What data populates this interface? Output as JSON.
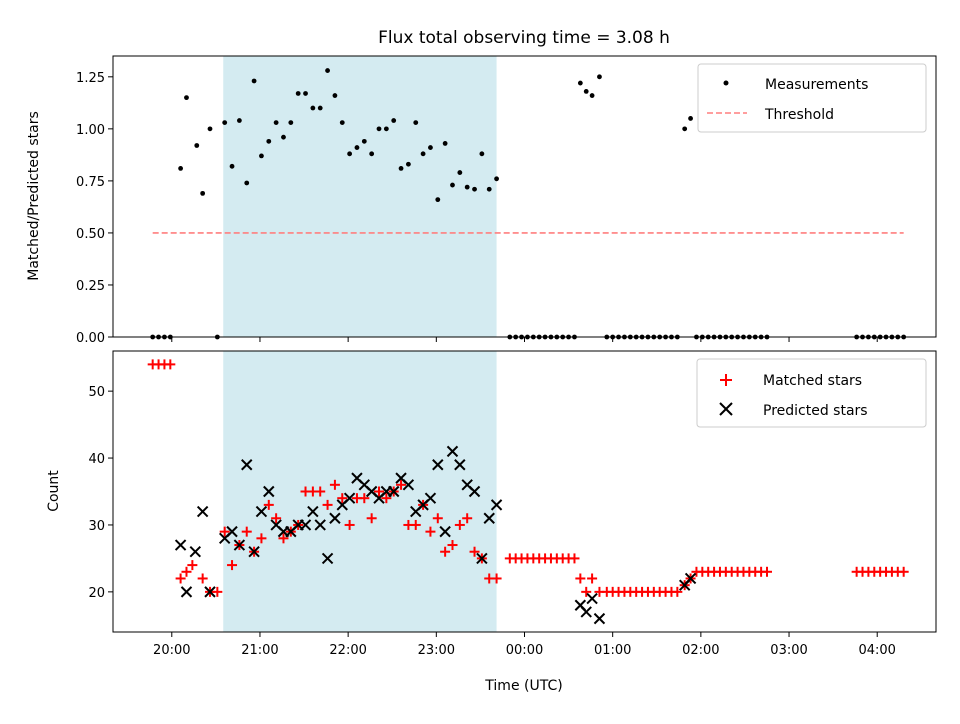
{
  "chart_data": [
    {
      "type": "scatter",
      "title": "Flux total observing time = 3.08 h",
      "xlabel": "",
      "ylabel": "Matched/Predicted stars",
      "ylim": [
        0,
        1.35
      ],
      "xlim": [
        "19:20",
        "04:40"
      ],
      "yticks": [
        "0.00",
        "0.25",
        "0.50",
        "0.75",
        "1.00",
        "1.25"
      ],
      "legend_position": "top-right",
      "shaded_interval": {
        "start": "20:35",
        "end": "23:41",
        "color": "#d4ebf1"
      },
      "series": [
        {
          "name": "Measurements",
          "marker": "dot",
          "color": "#000000",
          "points": [
            [
              "19:47",
              0
            ],
            [
              "19:51",
              0
            ],
            [
              "19:55",
              0
            ],
            [
              "19:59",
              0
            ],
            [
              "20:06",
              0.81
            ],
            [
              "20:10",
              1.15
            ],
            [
              "20:17",
              0.92
            ],
            [
              "20:21",
              0.69
            ],
            [
              "20:26",
              1.0
            ],
            [
              "20:31",
              0
            ],
            [
              "20:36",
              1.03
            ],
            [
              "20:41",
              0.82
            ],
            [
              "20:46",
              1.04
            ],
            [
              "20:51",
              0.74
            ],
            [
              "20:56",
              1.23
            ],
            [
              "21:01",
              0.87
            ],
            [
              "21:06",
              0.94
            ],
            [
              "21:11",
              1.03
            ],
            [
              "21:16",
              0.96
            ],
            [
              "21:21",
              1.03
            ],
            [
              "21:26",
              1.17
            ],
            [
              "21:31",
              1.17
            ],
            [
              "21:36",
              1.1
            ],
            [
              "21:41",
              1.1
            ],
            [
              "21:46",
              1.28
            ],
            [
              "21:51",
              1.16
            ],
            [
              "21:56",
              1.03
            ],
            [
              "22:01",
              0.88
            ],
            [
              "22:06",
              0.91
            ],
            [
              "22:11",
              0.94
            ],
            [
              "22:16",
              0.88
            ],
            [
              "22:21",
              1.0
            ],
            [
              "22:26",
              1.0
            ],
            [
              "22:31",
              1.04
            ],
            [
              "22:36",
              0.81
            ],
            [
              "22:41",
              0.83
            ],
            [
              "22:46",
              1.03
            ],
            [
              "22:51",
              0.88
            ],
            [
              "22:56",
              0.91
            ],
            [
              "23:01",
              0.66
            ],
            [
              "23:06",
              0.93
            ],
            [
              "23:11",
              0.73
            ],
            [
              "23:16",
              0.79
            ],
            [
              "23:21",
              0.72
            ],
            [
              "23:26",
              0.71
            ],
            [
              "23:31",
              0.88
            ],
            [
              "23:36",
              0.71
            ],
            [
              "23:41",
              0.76
            ],
            [
              "23:50",
              0
            ],
            [
              "23:54",
              0
            ],
            [
              "23:58",
              0
            ],
            [
              "00:02",
              0
            ],
            [
              "00:06",
              0
            ],
            [
              "00:10",
              0
            ],
            [
              "00:14",
              0
            ],
            [
              "00:18",
              0
            ],
            [
              "00:22",
              0
            ],
            [
              "00:26",
              0
            ],
            [
              "00:30",
              0
            ],
            [
              "00:34",
              0
            ],
            [
              "00:38",
              1.22
            ],
            [
              "00:42",
              1.18
            ],
            [
              "00:46",
              1.16
            ],
            [
              "00:51",
              1.25
            ],
            [
              "00:56",
              0
            ],
            [
              "01:00",
              0
            ],
            [
              "01:04",
              0
            ],
            [
              "01:08",
              0
            ],
            [
              "01:12",
              0
            ],
            [
              "01:16",
              0
            ],
            [
              "01:20",
              0
            ],
            [
              "01:24",
              0
            ],
            [
              "01:28",
              0
            ],
            [
              "01:32",
              0
            ],
            [
              "01:36",
              0
            ],
            [
              "01:40",
              0
            ],
            [
              "01:44",
              0
            ],
            [
              "01:49",
              1.0
            ],
            [
              "01:53",
              1.05
            ],
            [
              "01:57",
              0
            ],
            [
              "02:01",
              0
            ],
            [
              "02:05",
              0
            ],
            [
              "02:09",
              0
            ],
            [
              "02:13",
              0
            ],
            [
              "02:17",
              0
            ],
            [
              "02:21",
              0
            ],
            [
              "02:25",
              0
            ],
            [
              "02:29",
              0
            ],
            [
              "02:33",
              0
            ],
            [
              "02:37",
              0
            ],
            [
              "02:41",
              0
            ],
            [
              "02:45",
              0
            ],
            [
              "03:46",
              0
            ],
            [
              "03:50",
              0
            ],
            [
              "03:54",
              0
            ],
            [
              "03:58",
              0
            ],
            [
              "04:02",
              0
            ],
            [
              "04:06",
              0
            ],
            [
              "04:10",
              0
            ],
            [
              "04:14",
              0
            ],
            [
              "04:18",
              0
            ]
          ]
        },
        {
          "name": "Threshold",
          "style": "dashed",
          "color": "#ff7f7f",
          "points": [
            [
              "19:47",
              0.5
            ],
            [
              "04:18",
              0.5
            ]
          ]
        }
      ]
    },
    {
      "type": "scatter",
      "title": "",
      "xlabel": "Time (UTC)",
      "ylabel": "Count",
      "ylim": [
        14,
        56
      ],
      "xlim": [
        "19:20",
        "04:40"
      ],
      "yticks": [
        "20",
        "30",
        "40",
        "50"
      ],
      "xticks": [
        "20:00",
        "21:00",
        "22:00",
        "23:00",
        "00:00",
        "01:00",
        "02:00",
        "03:00",
        "04:00"
      ],
      "legend_position": "top-right",
      "shaded_interval": {
        "start": "20:35",
        "end": "23:41",
        "color": "#d4ebf1"
      },
      "series": [
        {
          "name": "Matched stars",
          "marker": "plus",
          "color": "#ff0000",
          "points": [
            [
              "19:47",
              54
            ],
            [
              "19:51",
              54
            ],
            [
              "19:55",
              54
            ],
            [
              "19:59",
              54
            ],
            [
              "20:06",
              22
            ],
            [
              "20:10",
              23
            ],
            [
              "20:14",
              24
            ],
            [
              "20:21",
              22
            ],
            [
              "20:26",
              20
            ],
            [
              "20:31",
              20
            ],
            [
              "20:36",
              29
            ],
            [
              "20:41",
              24
            ],
            [
              "20:46",
              27
            ],
            [
              "20:51",
              29
            ],
            [
              "20:56",
              26
            ],
            [
              "21:01",
              28
            ],
            [
              "21:06",
              33
            ],
            [
              "21:11",
              31
            ],
            [
              "21:16",
              28
            ],
            [
              "21:21",
              29
            ],
            [
              "21:26",
              30
            ],
            [
              "21:31",
              35
            ],
            [
              "21:36",
              35
            ],
            [
              "21:41",
              35
            ],
            [
              "21:46",
              33
            ],
            [
              "21:51",
              36
            ],
            [
              "21:56",
              34
            ],
            [
              "22:01",
              30
            ],
            [
              "22:06",
              34
            ],
            [
              "22:11",
              34
            ],
            [
              "22:16",
              31
            ],
            [
              "22:21",
              35
            ],
            [
              "22:26",
              34
            ],
            [
              "22:31",
              35
            ],
            [
              "22:36",
              36
            ],
            [
              "22:41",
              30
            ],
            [
              "22:46",
              30
            ],
            [
              "22:51",
              33
            ],
            [
              "22:56",
              29
            ],
            [
              "23:01",
              31
            ],
            [
              "23:06",
              26
            ],
            [
              "23:11",
              27
            ],
            [
              "23:16",
              30
            ],
            [
              "23:21",
              31
            ],
            [
              "23:26",
              26
            ],
            [
              "23:31",
              25
            ],
            [
              "23:36",
              22
            ],
            [
              "23:41",
              22
            ],
            [
              "23:50",
              25
            ],
            [
              "23:54",
              25
            ],
            [
              "23:58",
              25
            ],
            [
              "00:02",
              25
            ],
            [
              "00:06",
              25
            ],
            [
              "00:10",
              25
            ],
            [
              "00:14",
              25
            ],
            [
              "00:18",
              25
            ],
            [
              "00:22",
              25
            ],
            [
              "00:26",
              25
            ],
            [
              "00:30",
              25
            ],
            [
              "00:34",
              25
            ],
            [
              "00:38",
              22
            ],
            [
              "00:42",
              20
            ],
            [
              "00:46",
              22
            ],
            [
              "00:51",
              20
            ],
            [
              "00:56",
              20
            ],
            [
              "01:00",
              20
            ],
            [
              "01:04",
              20
            ],
            [
              "01:08",
              20
            ],
            [
              "01:12",
              20
            ],
            [
              "01:16",
              20
            ],
            [
              "01:20",
              20
            ],
            [
              "01:24",
              20
            ],
            [
              "01:28",
              20
            ],
            [
              "01:32",
              20
            ],
            [
              "01:36",
              20
            ],
            [
              "01:40",
              20
            ],
            [
              "01:44",
              20
            ],
            [
              "01:49",
              21
            ],
            [
              "01:53",
              22
            ],
            [
              "01:57",
              23
            ],
            [
              "02:01",
              23
            ],
            [
              "02:05",
              23
            ],
            [
              "02:09",
              23
            ],
            [
              "02:13",
              23
            ],
            [
              "02:17",
              23
            ],
            [
              "02:21",
              23
            ],
            [
              "02:25",
              23
            ],
            [
              "02:29",
              23
            ],
            [
              "02:33",
              23
            ],
            [
              "02:37",
              23
            ],
            [
              "02:41",
              23
            ],
            [
              "02:45",
              23
            ],
            [
              "03:46",
              23
            ],
            [
              "03:50",
              23
            ],
            [
              "03:54",
              23
            ],
            [
              "03:58",
              23
            ],
            [
              "04:02",
              23
            ],
            [
              "04:06",
              23
            ],
            [
              "04:10",
              23
            ],
            [
              "04:14",
              23
            ],
            [
              "04:18",
              23
            ]
          ]
        },
        {
          "name": "Predicted stars",
          "marker": "x",
          "color": "#000000",
          "points": [
            [
              "20:06",
              27
            ],
            [
              "20:10",
              20
            ],
            [
              "20:16",
              26
            ],
            [
              "20:21",
              32
            ],
            [
              "20:26",
              20
            ],
            [
              "20:36",
              28
            ],
            [
              "20:41",
              29
            ],
            [
              "20:46",
              27
            ],
            [
              "20:51",
              39
            ],
            [
              "20:56",
              26
            ],
            [
              "21:01",
              32
            ],
            [
              "21:06",
              35
            ],
            [
              "21:11",
              30
            ],
            [
              "21:16",
              29
            ],
            [
              "21:21",
              29
            ],
            [
              "21:26",
              30
            ],
            [
              "21:31",
              30
            ],
            [
              "21:36",
              32
            ],
            [
              "21:41",
              30
            ],
            [
              "21:46",
              25
            ],
            [
              "21:51",
              31
            ],
            [
              "21:56",
              33
            ],
            [
              "22:01",
              34
            ],
            [
              "22:06",
              37
            ],
            [
              "22:11",
              36
            ],
            [
              "22:16",
              35
            ],
            [
              "22:21",
              34
            ],
            [
              "22:26",
              35
            ],
            [
              "22:31",
              35
            ],
            [
              "22:36",
              37
            ],
            [
              "22:41",
              36
            ],
            [
              "22:46",
              32
            ],
            [
              "22:51",
              33
            ],
            [
              "22:56",
              34
            ],
            [
              "23:01",
              39
            ],
            [
              "23:06",
              29
            ],
            [
              "23:11",
              41
            ],
            [
              "23:16",
              39
            ],
            [
              "23:21",
              36
            ],
            [
              "23:26",
              35
            ],
            [
              "23:31",
              25
            ],
            [
              "23:36",
              31
            ],
            [
              "23:41",
              33
            ],
            [
              "00:38",
              18
            ],
            [
              "00:42",
              17
            ],
            [
              "00:46",
              19
            ],
            [
              "00:51",
              16
            ],
            [
              "01:49",
              21
            ],
            [
              "01:53",
              22
            ]
          ]
        }
      ]
    }
  ]
}
